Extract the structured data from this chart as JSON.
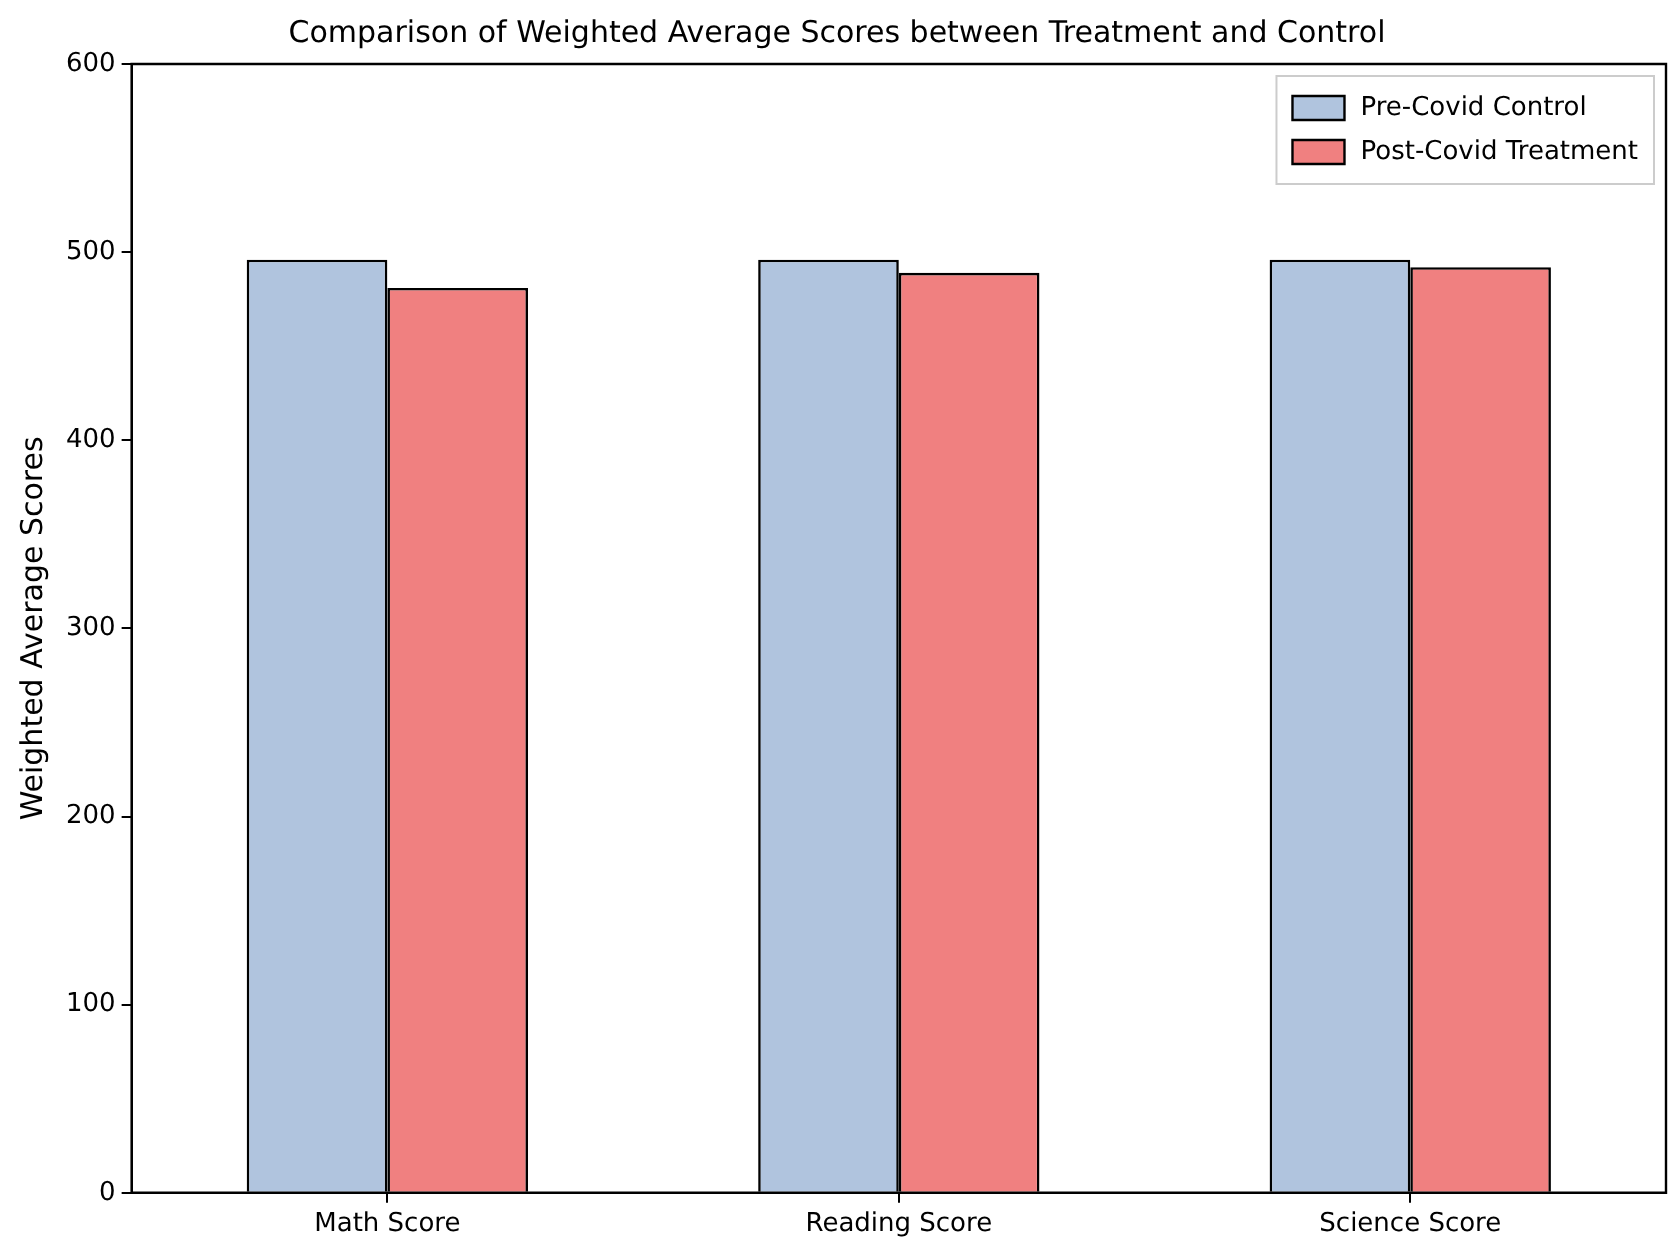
{
  "chart_data": {
    "type": "bar",
    "title": "Comparison of Weighted Average Scores between Treatment and Control",
    "ylabel": "Weighted Average Scores",
    "categories": [
      "Math Score",
      "Reading Score",
      "Science Score"
    ],
    "series": [
      {
        "name": "Pre-Covid Control",
        "color": "#b0c4de",
        "values": [
          496,
          496,
          496
        ]
      },
      {
        "name": "Post-Covid Treatment",
        "color": "#f08080",
        "values": [
          481,
          489,
          492
        ]
      }
    ],
    "ylim": [
      0,
      600
    ],
    "yticks": [
      0,
      100,
      200,
      300,
      400,
      500,
      600
    ],
    "grid": false,
    "legend": "top right"
  }
}
